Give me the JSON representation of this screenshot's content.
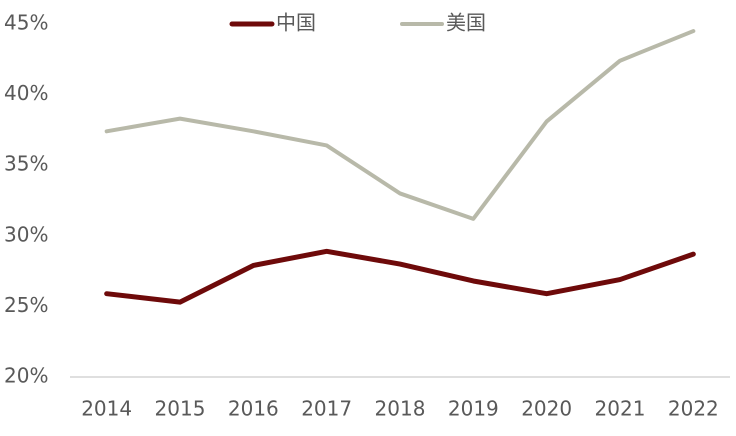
{
  "chart_data": {
    "type": "line",
    "categories": [
      "2014",
      "2015",
      "2016",
      "2017",
      "2018",
      "2019",
      "2020",
      "2021",
      "2022"
    ],
    "series": [
      {
        "name": "中国",
        "color": "#6e0a0a",
        "values": [
          25.9,
          25.3,
          27.9,
          28.9,
          28.0,
          26.8,
          25.9,
          26.9,
          28.7
        ]
      },
      {
        "name": "美国",
        "color": "#b8b9a9",
        "values": [
          37.4,
          38.3,
          37.4,
          36.4,
          33.0,
          31.2,
          38.1,
          42.4,
          44.5
        ]
      }
    ],
    "ylim": [
      20,
      45
    ],
    "yticks": [
      {
        "value": 20,
        "label": "20%"
      },
      {
        "value": 25,
        "label": "25%"
      },
      {
        "value": 30,
        "label": "30%"
      },
      {
        "value": 35,
        "label": "35%"
      },
      {
        "value": 40,
        "label": "40%"
      },
      {
        "value": 45,
        "label": "45%"
      }
    ],
    "grid": false,
    "legend": "top"
  }
}
